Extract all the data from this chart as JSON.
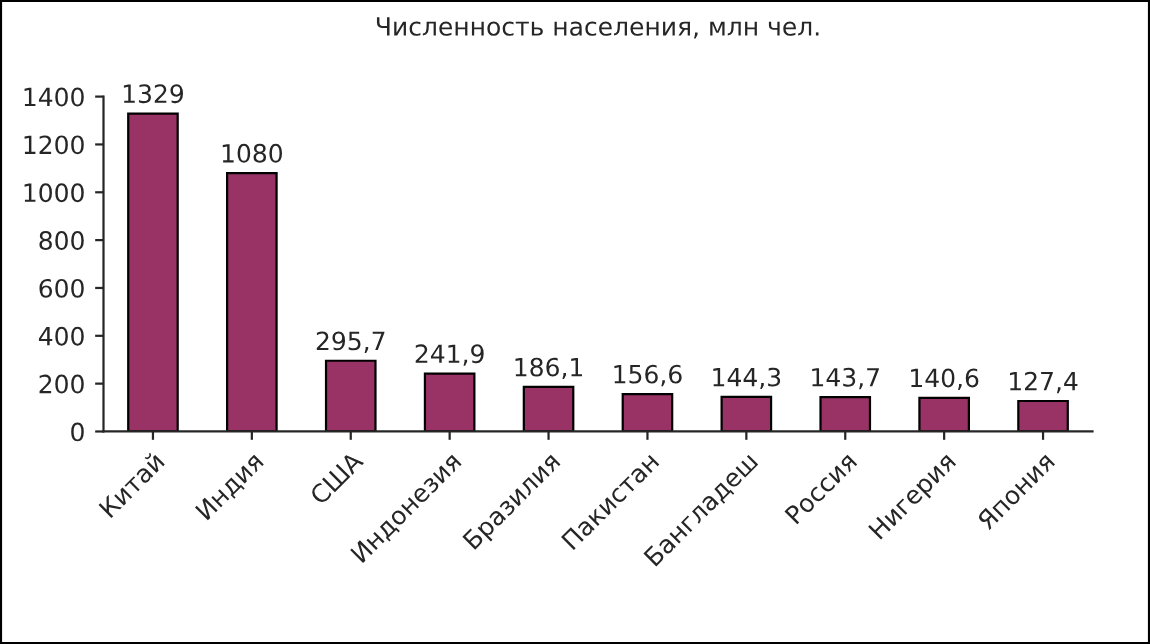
{
  "chart_data": {
    "type": "bar",
    "title": "Численность населения, млн чел.",
    "categories": [
      "Китай",
      "Индия",
      "США",
      "Индонезия",
      "Бразилия",
      "Пакистан",
      "Бангладеш",
      "Россия",
      "Нигерия",
      "Япония"
    ],
    "values": [
      1329,
      1080,
      295.7,
      241.9,
      186.1,
      156.6,
      144.3,
      143.7,
      140.6,
      127.4
    ],
    "value_labels": [
      "1329",
      "1080",
      "295,7",
      "241,9",
      "186,1",
      "156,6",
      "144,3",
      "143,7",
      "140,6",
      "127,4"
    ],
    "color": "#993366",
    "ylim": [
      0,
      1400
    ],
    "yticks": [
      0,
      200,
      400,
      600,
      800,
      1000,
      1200,
      1400
    ],
    "grid": false,
    "legend": false
  }
}
